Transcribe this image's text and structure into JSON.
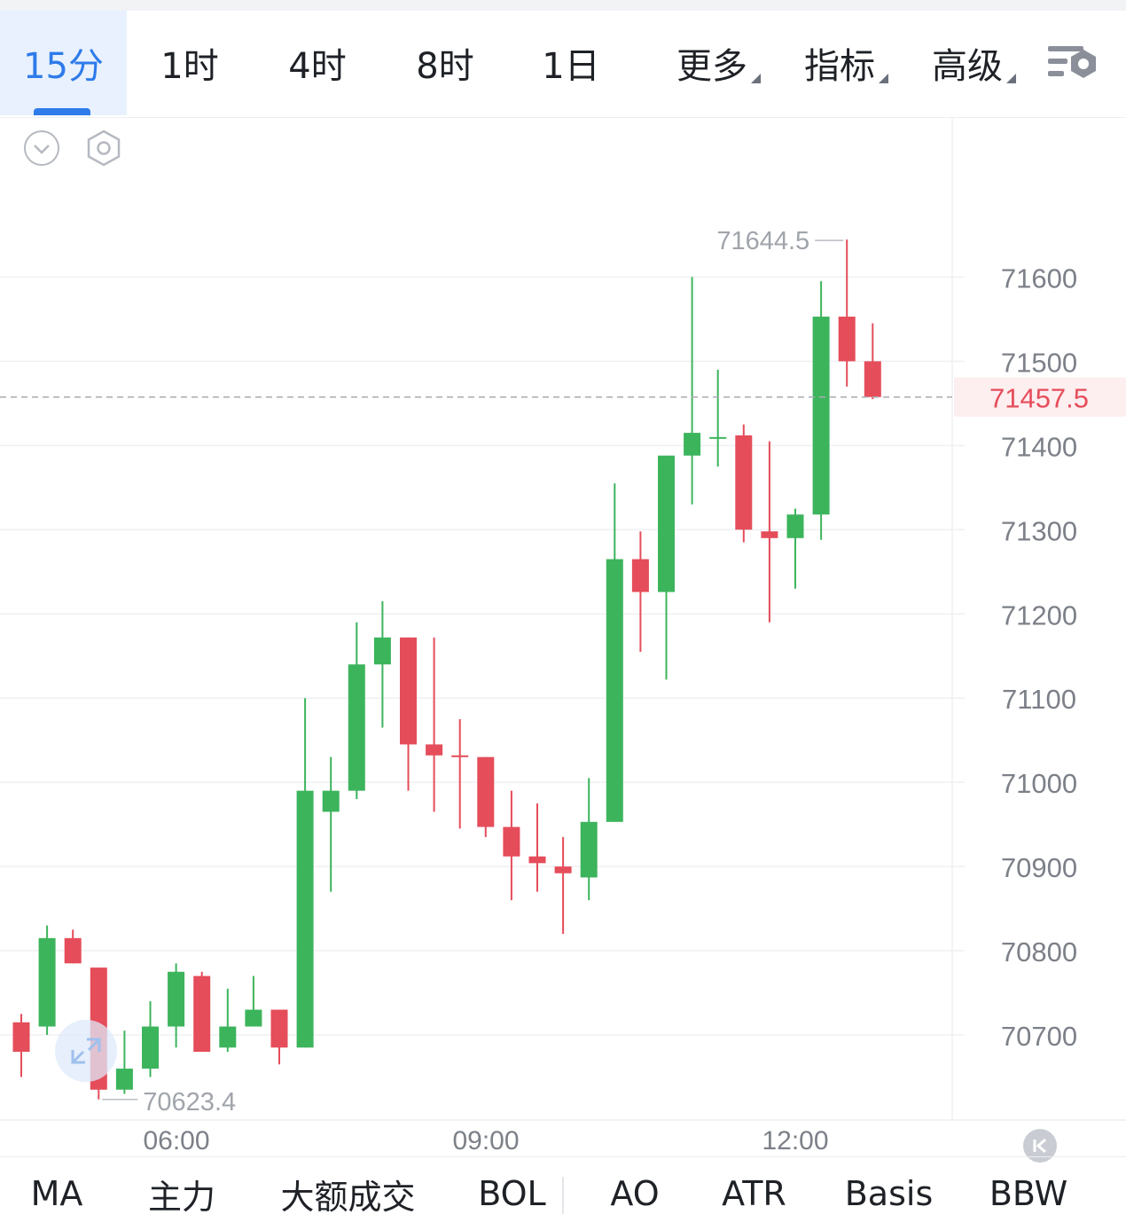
{
  "timeframe_tabs": [
    {
      "label": "15分",
      "active": true
    },
    {
      "label": "1时",
      "active": false
    },
    {
      "label": "4时",
      "active": false
    },
    {
      "label": "8时",
      "active": false
    },
    {
      "label": "1日",
      "active": false
    },
    {
      "label": "更多",
      "dropdown": true
    },
    {
      "label": "指标",
      "dropdown": true
    },
    {
      "label": "高级",
      "dropdown": true
    }
  ],
  "indicator_tabs": [
    "MA",
    "主力",
    "大额成交",
    "BOL",
    "AO",
    "ATR",
    "Basis",
    "BBW"
  ],
  "icons": {
    "chart_settings": "chart-settings-icon",
    "collapse": "chevron-down-circle-icon",
    "settings": "hexagon-gear-icon",
    "scroll_latest": "skip-to-latest-icon",
    "expand": "expand-arrows-icon"
  },
  "colors": {
    "up": "#3cb45c",
    "down": "#e54d5a",
    "accent": "#2e7bea",
    "price_line": "#e54d5a",
    "grid": "#eef0f3",
    "axis_text": "#7c8088"
  },
  "chart_data": {
    "type": "candlestick",
    "y_axis": {
      "ticks": [
        71600,
        71500,
        71400,
        71300,
        71200,
        71100,
        71000,
        70900,
        70800,
        70700
      ],
      "range": [
        70600,
        71790
      ],
      "position": "right"
    },
    "x_axis": {
      "ticks": [
        "06:00",
        "09:00",
        "12:00"
      ]
    },
    "current_price": "71457.5",
    "high_label": "71644.5",
    "low_label": "70623.4",
    "candles": [
      {
        "o": 70715,
        "h": 70725,
        "l": 70650,
        "c": 70680
      },
      {
        "o": 70710,
        "h": 70830,
        "l": 70700,
        "c": 70815
      },
      {
        "o": 70815,
        "h": 70825,
        "l": 70785,
        "c": 70785
      },
      {
        "o": 70780,
        "h": 70780,
        "l": 70623.4,
        "c": 70635
      },
      {
        "o": 70635,
        "h": 70705,
        "l": 70630,
        "c": 70660
      },
      {
        "o": 70660,
        "h": 70740,
        "l": 70650,
        "c": 70710
      },
      {
        "o": 70710,
        "h": 70785,
        "l": 70685,
        "c": 70775
      },
      {
        "o": 70770,
        "h": 70775,
        "l": 70680,
        "c": 70680
      },
      {
        "o": 70685,
        "h": 70755,
        "l": 70680,
        "c": 70710
      },
      {
        "o": 70710,
        "h": 70770,
        "l": 70710,
        "c": 70730
      },
      {
        "o": 70730,
        "h": 70730,
        "l": 70665,
        "c": 70685
      },
      {
        "o": 70685,
        "h": 71100,
        "l": 70685,
        "c": 70990
      },
      {
        "o": 70965,
        "h": 71030,
        "l": 70870,
        "c": 70990
      },
      {
        "o": 70990,
        "h": 71190,
        "l": 70980,
        "c": 71140
      },
      {
        "o": 71140,
        "h": 71215,
        "l": 71065,
        "c": 71172
      },
      {
        "o": 71172,
        "h": 71172,
        "l": 70990,
        "c": 71045
      },
      {
        "o": 71045,
        "h": 71172,
        "l": 70965,
        "c": 71032
      },
      {
        "o": 71032,
        "h": 71075,
        "l": 70945,
        "c": 71030
      },
      {
        "o": 71030,
        "h": 71030,
        "l": 70935,
        "c": 70947
      },
      {
        "o": 70947,
        "h": 70990,
        "l": 70860,
        "c": 70912
      },
      {
        "o": 70912,
        "h": 70975,
        "l": 70870,
        "c": 70904
      },
      {
        "o": 70900,
        "h": 70935,
        "l": 70820,
        "c": 70892
      },
      {
        "o": 70887,
        "h": 71005,
        "l": 70860,
        "c": 70953
      },
      {
        "o": 70953,
        "h": 71355,
        "l": 70953,
        "c": 71265
      },
      {
        "o": 71265,
        "h": 71298,
        "l": 71155,
        "c": 71226
      },
      {
        "o": 71226,
        "h": 71385,
        "l": 71122,
        "c": 71388
      },
      {
        "o": 71388,
        "h": 71600,
        "l": 71330,
        "c": 71415
      },
      {
        "o": 71410,
        "h": 71490,
        "l": 71375,
        "c": 71410
      },
      {
        "o": 71412,
        "h": 71425,
        "l": 71285,
        "c": 71300
      },
      {
        "o": 71298,
        "h": 71405,
        "l": 71190,
        "c": 71290
      },
      {
        "o": 71290,
        "h": 71325,
        "l": 71230,
        "c": 71318
      },
      {
        "o": 71318,
        "h": 71595,
        "l": 71288,
        "c": 71553
      },
      {
        "o": 71553,
        "h": 71644.5,
        "l": 71470,
        "c": 71500
      },
      {
        "o": 71500,
        "h": 71545,
        "l": 71455,
        "c": 71457.5
      }
    ]
  }
}
